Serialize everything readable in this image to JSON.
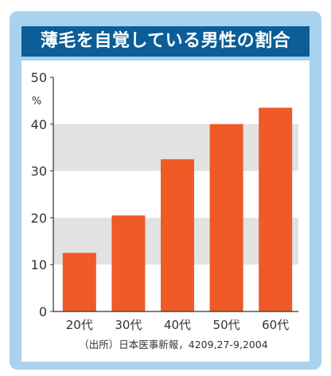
{
  "chart_data": {
    "type": "bar",
    "title": "薄毛を自覚している男性の割合",
    "categories": [
      "20代",
      "30代",
      "40代",
      "50代",
      "60代"
    ],
    "values": [
      12.5,
      20.5,
      32.5,
      40,
      43.5
    ],
    "ylabel": "%",
    "ylim": [
      0,
      50
    ],
    "yticks": [
      "0",
      "10",
      "20",
      "30",
      "40",
      "50"
    ],
    "grid": "alternating horizontal bands",
    "source": "（出所）日本医事新報，4209,27-9,2004"
  },
  "colors": {
    "frame": "#a9d2ee",
    "title_background": "#0b5e97",
    "title_text": "#ffffff",
    "bar": "#ef5a26",
    "band": "#e2e2e2",
    "axis": "#333333",
    "text": "#333333"
  }
}
